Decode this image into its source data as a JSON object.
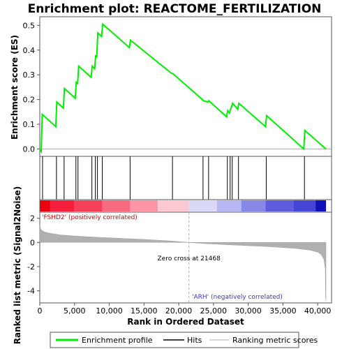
{
  "chart_data": {
    "type": "line",
    "title": "Enrichment plot: REACTOME_FERTILIZATION",
    "colors": {
      "profile": "#00ee00",
      "hits": "#000000",
      "metric_fill": "#b0b0b0",
      "pos_text": "#dd0000",
      "neg_text": "#3333cc",
      "frame": "#555555"
    },
    "top_panel": {
      "ylabel": "Enrichment score (ES)",
      "ylim": [
        -0.03,
        0.535
      ],
      "yticks": [
        0.0,
        0.1,
        0.2,
        0.3,
        0.4,
        0.5
      ],
      "ytick_labels": [
        "0.0",
        "0.1",
        "0.2",
        "0.3",
        "0.4",
        "0.5"
      ],
      "xlim": [
        0,
        42000
      ],
      "series": [
        {
          "x": [
            0,
            200,
            350,
            2300,
            2450,
            3400,
            3550,
            5100,
            5250,
            5450,
            5600,
            7400,
            7550,
            7900,
            8050,
            8200,
            8350,
            8900,
            9050,
            12900,
            13050,
            19000,
            19150,
            23400,
            23550,
            24200,
            24350,
            26900,
            27050,
            27300,
            27450,
            27600,
            27750,
            28500,
            28650,
            32500,
            32650,
            38000,
            38150,
            41200
          ],
          "y": [
            0.0,
            -0.01,
            0.14,
            0.09,
            0.19,
            0.165,
            0.245,
            0.205,
            0.27,
            0.265,
            0.335,
            0.29,
            0.335,
            0.325,
            0.38,
            0.37,
            0.47,
            0.455,
            0.505,
            0.41,
            0.44,
            0.305,
            0.305,
            0.2,
            0.195,
            0.19,
            0.195,
            0.13,
            0.155,
            0.145,
            0.16,
            0.17,
            0.185,
            0.16,
            0.185,
            0.09,
            0.135,
            0.0,
            0.075,
            0.0
          ]
        }
      ]
    },
    "hits": {
      "positions": [
        400,
        2400,
        3500,
        5200,
        5500,
        7500,
        8000,
        8300,
        9000,
        13000,
        19100,
        23500,
        24300,
        27000,
        27400,
        27700,
        28600,
        32600,
        38100
      ]
    },
    "ribbon": {
      "xlim": [
        0,
        41200
      ],
      "segments": [
        {
          "from": 0,
          "to": 1500,
          "color": "#e8000e"
        },
        {
          "from": 1500,
          "to": 5000,
          "color": "#f51f3b"
        },
        {
          "from": 5000,
          "to": 9000,
          "color": "#f6405a"
        },
        {
          "from": 9000,
          "to": 13000,
          "color": "#f86a80"
        },
        {
          "from": 13000,
          "to": 17000,
          "color": "#fa96a6"
        },
        {
          "from": 17000,
          "to": 21468,
          "color": "#fcc9d2"
        },
        {
          "from": 21468,
          "to": 25500,
          "color": "#d9d8f6"
        },
        {
          "from": 25500,
          "to": 29000,
          "color": "#b7b6f0"
        },
        {
          "from": 29000,
          "to": 32500,
          "color": "#8a88e7"
        },
        {
          "from": 32500,
          "to": 36500,
          "color": "#5e5cdc"
        },
        {
          "from": 36500,
          "to": 39700,
          "color": "#4444d6"
        },
        {
          "from": 39700,
          "to": 41200,
          "color": "#1111bb"
        }
      ]
    },
    "bottom_panel": {
      "ylabel": "Ranked list metric (Signal2Noise)",
      "xlabel": "Rank in Ordered Dataset",
      "ylim": [
        -5.0,
        2.5
      ],
      "yticks": [
        -4,
        -2,
        0,
        2
      ],
      "ytick_labels": [
        "-4",
        "-2",
        "0",
        "2"
      ],
      "xlim": [
        0,
        42000
      ],
      "xticks": [
        0,
        5000,
        10000,
        15000,
        20000,
        25000,
        30000,
        35000,
        40000
      ],
      "xtick_labels": [
        "0",
        "5,000",
        "10,000",
        "15,000",
        "20,000",
        "25,000",
        "30,000",
        "35,000",
        "40,000"
      ],
      "metric": {
        "x": [
          0,
          150,
          400,
          800,
          1500,
          3000,
          6000,
          10000,
          15000,
          19000,
          21468,
          24000,
          28000,
          33000,
          37000,
          39000,
          40000,
          40500,
          40900,
          41100,
          41150,
          41200
        ],
        "y": [
          1.4,
          1.1,
          0.95,
          0.85,
          0.75,
          0.62,
          0.5,
          0.38,
          0.25,
          0.12,
          0.0,
          -0.1,
          -0.22,
          -0.35,
          -0.5,
          -0.65,
          -0.8,
          -1.0,
          -1.4,
          -2.2,
          -4.5,
          -4.8
        ]
      },
      "zero_cross_label": "Zero cross at 21468",
      "zero_cross": 21468,
      "pos_label": "'FSHD2' (positively correlated)",
      "neg_label": "'ARH' (negatively correlated)"
    },
    "legend": {
      "placement": "bottom",
      "items": [
        {
          "label": "Enrichment profile",
          "kind": "profile"
        },
        {
          "label": "Hits",
          "kind": "hits"
        },
        {
          "label": "Ranking metric scores",
          "kind": "metric"
        }
      ]
    }
  }
}
